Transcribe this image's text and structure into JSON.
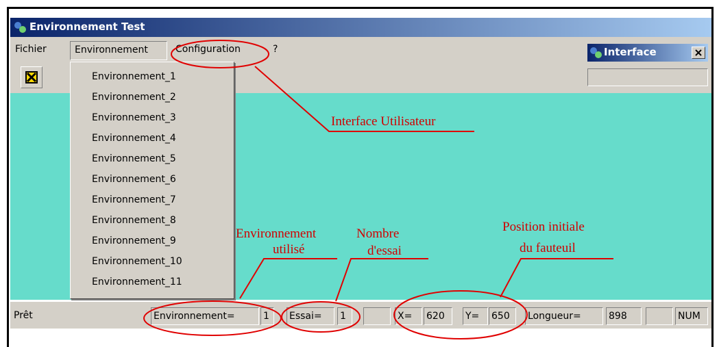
{
  "window": {
    "title": "Environnement Test",
    "menu": [
      "Fichier",
      "Environnement",
      "Configuration",
      "?"
    ],
    "dropdown": [
      "Environnement_1",
      "Environnement_2",
      "Environnement_3",
      "Environnement_4",
      "Environnement_5",
      "Environnement_6",
      "Environnement_7",
      "Environnement_8",
      "Environnement_9",
      "Environnement_10",
      "Environnement_11"
    ]
  },
  "interface_window": {
    "title": "Interface"
  },
  "status_bar": {
    "ready": "Prêt",
    "fields": [
      "Environnement=",
      1,
      "Essai=",
      1,
      "X=",
      620,
      "Y=",
      650,
      "Longueur=",
      898,
      "NUM"
    ]
  },
  "annotations": [
    {
      "lines": [
        "Interface Utilisateur"
      ]
    },
    {
      "lines": [
        "Environnement",
        "utilisé"
      ]
    },
    {
      "lines": [
        "Nombre",
        "d'essai"
      ]
    },
    {
      "lines": [
        "Position initiale",
        "du fauteuil"
      ]
    }
  ]
}
